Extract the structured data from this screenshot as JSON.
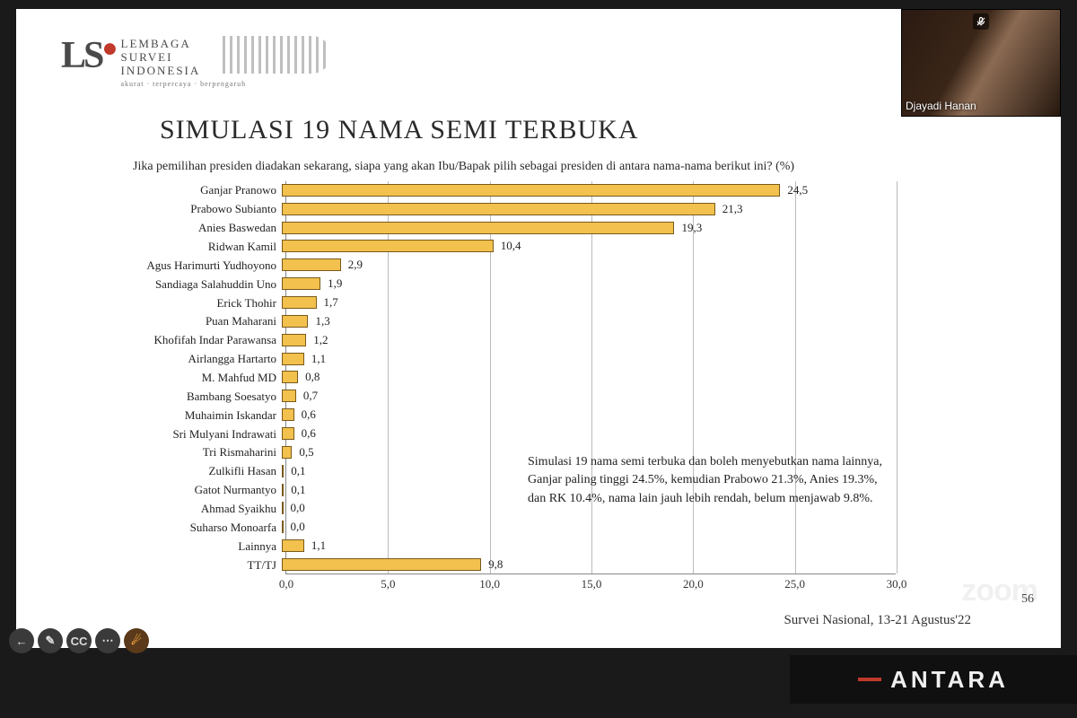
{
  "logo": {
    "line1": "LEMBAGA",
    "line2": "SURVEI",
    "line3": "INDONESIA",
    "tagline": "akurat · terpercaya · berpengaruh"
  },
  "video": {
    "presenter": "Djayadi Hanan"
  },
  "title": "SIMULASI 19 NAMA SEMI TERBUKA",
  "question": "Jika pemilihan presiden diadakan sekarang, siapa yang akan Ibu/Bapak pilih sebagai presiden di antara nama-nama berikut ini?  (%)",
  "chart": {
    "type": "bar-horizontal",
    "bar_fill": "#f2c14e",
    "bar_stroke": "#7a5a1a",
    "grid_color": "#bbbbbb",
    "axis_color": "#888888",
    "background": "#ffffff",
    "label_fontsize": 13,
    "value_fontsize": 13,
    "x_min": 0,
    "x_max": 30,
    "x_tick_step": 5,
    "x_ticks": [
      "0,0",
      "5,0",
      "10,0",
      "15,0",
      "20,0",
      "25,0",
      "30,0"
    ],
    "categories": [
      {
        "label": "Ganjar Pranowo",
        "value": 24.5,
        "display": "24,5"
      },
      {
        "label": "Prabowo Subianto",
        "value": 21.3,
        "display": "21,3"
      },
      {
        "label": "Anies Baswedan",
        "value": 19.3,
        "display": "19,3"
      },
      {
        "label": "Ridwan Kamil",
        "value": 10.4,
        "display": "10,4"
      },
      {
        "label": "Agus Harimurti Yudhoyono",
        "value": 2.9,
        "display": "2,9"
      },
      {
        "label": "Sandiaga Salahuddin Uno",
        "value": 1.9,
        "display": "1,9"
      },
      {
        "label": "Erick Thohir",
        "value": 1.7,
        "display": "1,7"
      },
      {
        "label": "Puan Maharani",
        "value": 1.3,
        "display": "1,3"
      },
      {
        "label": "Khofifah Indar Parawansa",
        "value": 1.2,
        "display": "1,2"
      },
      {
        "label": "Airlangga Hartarto",
        "value": 1.1,
        "display": "1,1"
      },
      {
        "label": "M. Mahfud MD",
        "value": 0.8,
        "display": "0,8"
      },
      {
        "label": "Bambang Soesatyo",
        "value": 0.7,
        "display": "0,7"
      },
      {
        "label": "Muhaimin Iskandar",
        "value": 0.6,
        "display": "0,6"
      },
      {
        "label": "Sri Mulyani Indrawati",
        "value": 0.6,
        "display": "0,6"
      },
      {
        "label": "Tri Rismaharini",
        "value": 0.5,
        "display": "0,5"
      },
      {
        "label": "Zulkifli Hasan",
        "value": 0.1,
        "display": "0,1"
      },
      {
        "label": "Gatot Nurmantyo",
        "value": 0.1,
        "display": "0,1"
      },
      {
        "label": "Ahmad Syaikhu",
        "value": 0.0,
        "display": "0,0"
      },
      {
        "label": "Suharso Monoarfa",
        "value": 0.0,
        "display": "0,0"
      },
      {
        "label": "Lainnya",
        "value": 1.1,
        "display": "1,1"
      },
      {
        "label": "TT/TJ",
        "value": 9.8,
        "display": "9,8"
      }
    ]
  },
  "summary": "Simulasi 19 nama semi terbuka dan boleh menyebutkan nama lainnya, Ganjar paling tinggi 24.5%, kemudian Prabowo 21.3%, Anies 19.3%, dan RK 10.4%, nama lain jauh lebih rendah, belum menjawab 9.8%.",
  "slide_number": "56",
  "source_footer": "Survei Nasional, 13-21 Agustus'22",
  "zoom_watermark": "zoom",
  "toolbar": {
    "back": "←",
    "draw": "✎",
    "cc": "CC",
    "more": "⋯",
    "pointer": "☄"
  },
  "watermark": "ANTARA"
}
